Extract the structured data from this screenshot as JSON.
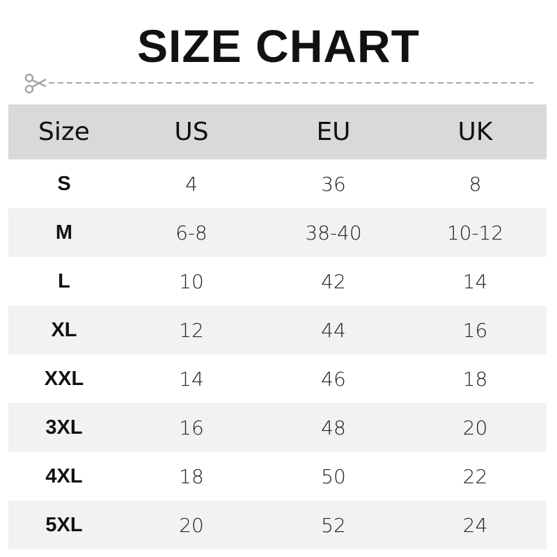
{
  "title": "SIZE CHART",
  "colors": {
    "header_bg": "#d9d9d9",
    "stripe_bg": "#f2f2f2",
    "cutline": "#a6a6a6"
  },
  "cutline_icon": "scissors-icon",
  "table": {
    "headers": [
      "Size",
      "US",
      "EU",
      "UK"
    ],
    "rows": [
      [
        "S",
        "4",
        "36",
        "8"
      ],
      [
        "M",
        "6-8",
        "38-40",
        "10-12"
      ],
      [
        "L",
        "10",
        "42",
        "14"
      ],
      [
        "XL",
        "12",
        "44",
        "16"
      ],
      [
        "XXL",
        "14",
        "46",
        "18"
      ],
      [
        "3XL",
        "16",
        "48",
        "20"
      ],
      [
        "4XL",
        "18",
        "50",
        "22"
      ],
      [
        "5XL",
        "20",
        "52",
        "24"
      ]
    ]
  }
}
